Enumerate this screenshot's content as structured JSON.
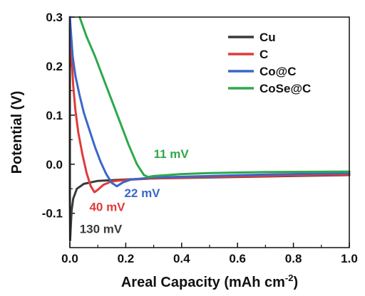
{
  "chart_data": {
    "type": "line",
    "xlabel": "Areal Capacity (mAh cm",
    "xlabel_sup": "-2",
    "xlabel_end": ")",
    "ylabel": "Potential (V)",
    "xlim": [
      0.0,
      1.0
    ],
    "ylim": [
      -0.17,
      0.3
    ],
    "x_ticks": [
      0.0,
      0.2,
      0.4,
      0.6,
      0.8,
      1.0
    ],
    "x_tick_labels": [
      "0.0",
      "0.2",
      "0.4",
      "0.6",
      "0.8",
      "1.0"
    ],
    "y_ticks": [
      -0.1,
      0.0,
      0.1,
      0.2,
      0.3
    ],
    "y_tick_labels": [
      "-0.1",
      "0.0",
      "0.1",
      "0.2",
      "0.3"
    ],
    "legend_position": "top-right",
    "series": [
      {
        "name": "Cu",
        "color": "#3a3a3a",
        "x": [
          0.0,
          0.0,
          0.001,
          0.003,
          0.006,
          0.012,
          0.025,
          0.05,
          0.1,
          0.2,
          0.3,
          0.5,
          0.7,
          1.0
        ],
        "y": [
          0.3,
          -0.06,
          -0.155,
          -0.13,
          -0.095,
          -0.07,
          -0.05,
          -0.04,
          -0.034,
          -0.031,
          -0.029,
          -0.027,
          -0.025,
          -0.022
        ]
      },
      {
        "name": "C",
        "color": "#e03a3a",
        "x": [
          0.0,
          0.006,
          0.012,
          0.02,
          0.03,
          0.045,
          0.06,
          0.075,
          0.088,
          0.1,
          0.12,
          0.15,
          0.2,
          0.3,
          0.5,
          0.7,
          1.0
        ],
        "y": [
          0.3,
          0.22,
          0.16,
          0.11,
          0.065,
          0.02,
          -0.018,
          -0.045,
          -0.057,
          -0.052,
          -0.042,
          -0.035,
          -0.032,
          -0.029,
          -0.026,
          -0.024,
          -0.021
        ]
      },
      {
        "name": "Co@C",
        "color": "#3a67c8",
        "x": [
          0.0,
          0.01,
          0.02,
          0.035,
          0.05,
          0.07,
          0.09,
          0.11,
          0.13,
          0.15,
          0.168,
          0.19,
          0.22,
          0.3,
          0.5,
          0.7,
          1.0
        ],
        "y": [
          0.3,
          0.22,
          0.18,
          0.14,
          0.105,
          0.07,
          0.035,
          0.005,
          -0.02,
          -0.038,
          -0.045,
          -0.037,
          -0.031,
          -0.027,
          -0.024,
          -0.021,
          -0.018
        ]
      },
      {
        "name": "CoSe@C",
        "color": "#2fa84a",
        "x": [
          0.035,
          0.06,
          0.09,
          0.12,
          0.15,
          0.18,
          0.21,
          0.24,
          0.265,
          0.28,
          0.3,
          0.4,
          0.5,
          0.7,
          1.0
        ],
        "y": [
          0.3,
          0.26,
          0.22,
          0.175,
          0.13,
          0.085,
          0.04,
          0.0,
          -0.022,
          -0.026,
          -0.024,
          -0.02,
          -0.018,
          -0.016,
          -0.015
        ]
      }
    ],
    "annotations": [
      {
        "text": "11 mV",
        "x": 0.3,
        "y": 0.013,
        "color": "#2fa84a"
      },
      {
        "text": "22 mV",
        "x": 0.195,
        "y": -0.067,
        "color": "#3a67c8"
      },
      {
        "text": "40 mV",
        "x": 0.07,
        "y": -0.095,
        "color": "#e03a3a"
      },
      {
        "text": "130 mV",
        "x": 0.035,
        "y": -0.14,
        "color": "#3a3a3a"
      }
    ]
  }
}
